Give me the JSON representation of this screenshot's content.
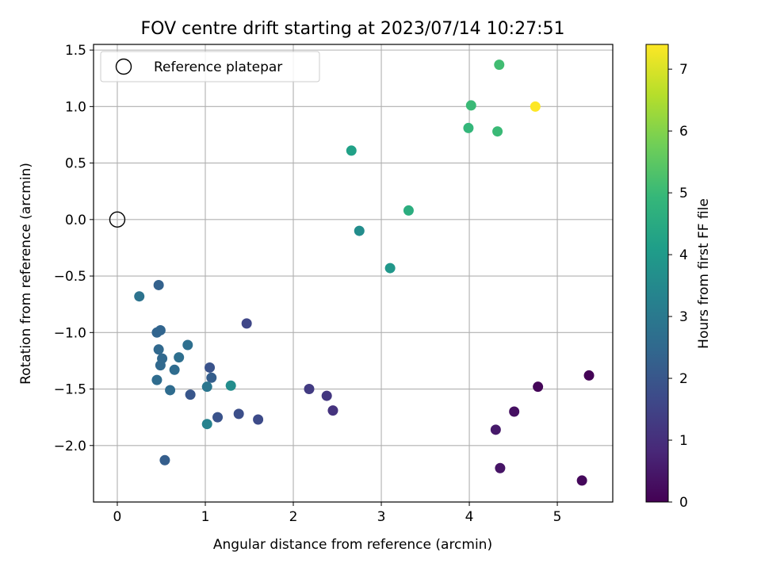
{
  "chart_data": {
    "type": "scatter",
    "title": "FOV centre drift starting at 2023/07/14 10:27:51",
    "xlabel": "Angular distance from reference (arcmin)",
    "ylabel": "Rotation from reference (arcmin)",
    "xlim": [
      -0.27,
      5.63
    ],
    "ylim": [
      -2.5,
      1.55
    ],
    "xticks": [
      0,
      1,
      2,
      3,
      4,
      5
    ],
    "xtick_labels": [
      "0",
      "1",
      "2",
      "3",
      "4",
      "5"
    ],
    "yticks": [
      -2.0,
      -1.5,
      -1.0,
      -0.5,
      0.0,
      0.5,
      1.0,
      1.5
    ],
    "ytick_labels": [
      "−2.0",
      "−1.5",
      "−1.0",
      "−0.5",
      "0.0",
      "0.5",
      "1.0",
      "1.5"
    ],
    "grid": true,
    "legend": {
      "position": "top-left",
      "entries": [
        "Reference platepar"
      ]
    },
    "reference_point": {
      "x": 0,
      "y": 0
    },
    "colorbar": {
      "label": "Hours from first FF file",
      "range": [
        0,
        7.4
      ],
      "ticks": [
        0,
        1,
        2,
        3,
        4,
        5,
        6,
        7
      ],
      "tick_labels": [
        "0",
        "1",
        "2",
        "3",
        "4",
        "5",
        "6",
        "7"
      ],
      "colormap": "viridis"
    },
    "points": [
      {
        "x": 5.36,
        "y": -1.38,
        "c": 0.05
      },
      {
        "x": 4.78,
        "y": -1.48,
        "c": 0.1
      },
      {
        "x": 5.28,
        "y": -2.31,
        "c": 0.15
      },
      {
        "x": 4.51,
        "y": -1.7,
        "c": 0.3
      },
      {
        "x": 4.35,
        "y": -2.2,
        "c": 0.4
      },
      {
        "x": 4.3,
        "y": -1.86,
        "c": 0.5
      },
      {
        "x": 2.45,
        "y": -1.69,
        "c": 1.1
      },
      {
        "x": 2.38,
        "y": -1.56,
        "c": 1.2
      },
      {
        "x": 2.18,
        "y": -1.5,
        "c": 1.3
      },
      {
        "x": 1.47,
        "y": -0.92,
        "c": 1.6
      },
      {
        "x": 1.6,
        "y": -1.77,
        "c": 1.7
      },
      {
        "x": 1.38,
        "y": -1.72,
        "c": 1.8
      },
      {
        "x": 1.14,
        "y": -1.75,
        "c": 1.9
      },
      {
        "x": 1.05,
        "y": -1.31,
        "c": 1.9
      },
      {
        "x": 0.83,
        "y": -1.55,
        "c": 2.0
      },
      {
        "x": 0.54,
        "y": -2.13,
        "c": 2.2
      },
      {
        "x": 1.07,
        "y": -1.4,
        "c": 2.2
      },
      {
        "x": 0.47,
        "y": -0.58,
        "c": 2.3
      },
      {
        "x": 0.49,
        "y": -0.98,
        "c": 2.4
      },
      {
        "x": 0.45,
        "y": -1.0,
        "c": 2.4
      },
      {
        "x": 0.47,
        "y": -1.15,
        "c": 2.5
      },
      {
        "x": 0.51,
        "y": -1.23,
        "c": 2.5
      },
      {
        "x": 0.49,
        "y": -1.29,
        "c": 2.5
      },
      {
        "x": 0.45,
        "y": -1.42,
        "c": 2.6
      },
      {
        "x": 0.6,
        "y": -1.51,
        "c": 2.6
      },
      {
        "x": 0.65,
        "y": -1.33,
        "c": 2.6
      },
      {
        "x": 0.7,
        "y": -1.22,
        "c": 2.7
      },
      {
        "x": 0.8,
        "y": -1.11,
        "c": 2.7
      },
      {
        "x": 0.25,
        "y": -0.68,
        "c": 2.8
      },
      {
        "x": 1.02,
        "y": -1.48,
        "c": 2.9
      },
      {
        "x": 1.02,
        "y": -1.81,
        "c": 3.3
      },
      {
        "x": 1.29,
        "y": -1.47,
        "c": 3.6
      },
      {
        "x": 2.75,
        "y": -0.1,
        "c": 3.6
      },
      {
        "x": 3.1,
        "y": -0.43,
        "c": 3.9
      },
      {
        "x": 2.66,
        "y": 0.61,
        "c": 4.2
      },
      {
        "x": 3.31,
        "y": 0.08,
        "c": 4.6
      },
      {
        "x": 3.99,
        "y": 0.81,
        "c": 4.9
      },
      {
        "x": 4.32,
        "y": 0.78,
        "c": 5.0
      },
      {
        "x": 4.02,
        "y": 1.01,
        "c": 5.0
      },
      {
        "x": 4.34,
        "y": 1.37,
        "c": 5.1
      },
      {
        "x": 4.75,
        "y": 1.0,
        "c": 7.4
      }
    ]
  }
}
